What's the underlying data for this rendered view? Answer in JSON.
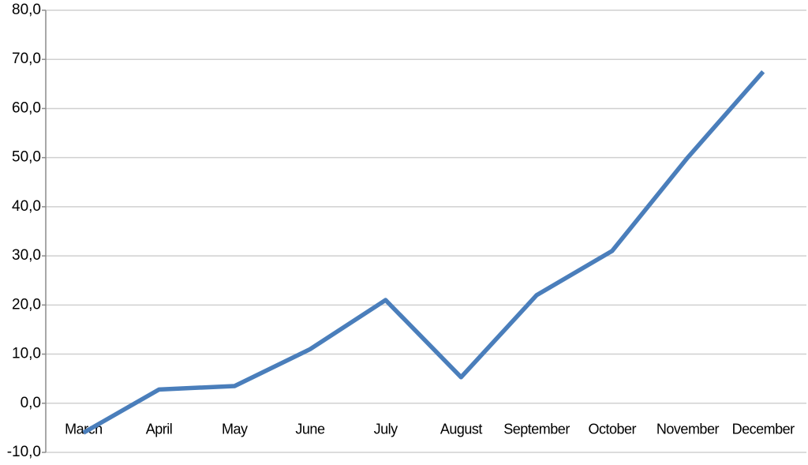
{
  "chart_data": {
    "type": "line",
    "categories": [
      "March",
      "April",
      "May",
      "June",
      "July",
      "August",
      "September",
      "October",
      "November",
      "December"
    ],
    "values": [
      -6,
      2.8,
      3.5,
      11,
      21,
      5.3,
      22,
      31,
      50,
      67.5
    ],
    "color": "#4a7ebb",
    "ylim": [
      -10,
      80
    ],
    "yticks": [
      {
        "value": -10,
        "label": "-10,0"
      },
      {
        "value": 0,
        "label": "0,0"
      },
      {
        "value": 10,
        "label": "10,0"
      },
      {
        "value": 20,
        "label": "20,0"
      },
      {
        "value": 30,
        "label": "30,0"
      },
      {
        "value": 40,
        "label": "40,0"
      },
      {
        "value": 50,
        "label": "50,0"
      },
      {
        "value": 60,
        "label": "60,0"
      },
      {
        "value": 70,
        "label": "70,0"
      },
      {
        "value": 80,
        "label": "80,0"
      }
    ],
    "grid": true
  }
}
